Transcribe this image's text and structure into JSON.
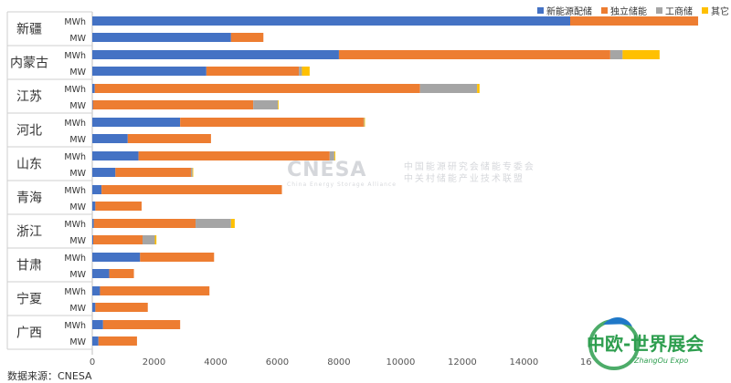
{
  "chart_data": {
    "type": "bar",
    "orientation": "horizontal",
    "stacked": true,
    "groups": [
      "新疆",
      "内蒙古",
      "江苏",
      "河北",
      "山东",
      "青海",
      "浙江",
      "甘肃",
      "宁夏",
      "广西"
    ],
    "units": [
      "MWh",
      "MW"
    ],
    "series": [
      {
        "name": "新能源配储",
        "color": "#4472C4",
        "values": [
          [
            15500,
            4500
          ],
          [
            8000,
            3700
          ],
          [
            80,
            20
          ],
          [
            2850,
            1150
          ],
          [
            1500,
            750
          ],
          [
            300,
            100
          ],
          [
            50,
            30
          ],
          [
            1550,
            550
          ],
          [
            250,
            100
          ],
          [
            350,
            200
          ]
        ]
      },
      {
        "name": "独立储能",
        "color": "#ED7D31",
        "values": [
          [
            4150,
            1050
          ],
          [
            8800,
            3000
          ],
          [
            10550,
            5200
          ],
          [
            5950,
            2700
          ],
          [
            6200,
            2450
          ],
          [
            5850,
            1500
          ],
          [
            3300,
            1600
          ],
          [
            2400,
            800
          ],
          [
            3550,
            1700
          ],
          [
            2500,
            1250
          ]
        ]
      },
      {
        "name": "工商储",
        "color": "#A5A5A5",
        "values": [
          [
            0,
            0
          ],
          [
            400,
            100
          ],
          [
            1850,
            800
          ],
          [
            20,
            0
          ],
          [
            150,
            50
          ],
          [
            0,
            0
          ],
          [
            1150,
            400
          ],
          [
            0,
            0
          ],
          [
            0,
            0
          ],
          [
            0,
            0
          ]
        ]
      },
      {
        "name": "其它",
        "color": "#FFC000",
        "values": [
          [
            0,
            0
          ],
          [
            1200,
            250
          ],
          [
            80,
            20
          ],
          [
            20,
            0
          ],
          [
            30,
            20
          ],
          [
            0,
            0
          ],
          [
            120,
            50
          ],
          [
            0,
            0
          ],
          [
            0,
            0
          ],
          [
            0,
            0
          ]
        ]
      }
    ],
    "xticks": [
      0,
      2000,
      4000,
      6000,
      8000,
      10000,
      12000,
      14000,
      "16"
    ],
    "xlim": [
      0,
      16000
    ],
    "legend_position": "top-right",
    "grid": false
  },
  "source_note": "数据来源：CNESA",
  "watermark": {
    "main": "CNESA",
    "sub": "China Energy Storage Alliance",
    "cn_line1": "中国能源研究会储能专委会",
    "cn_line2": "中关村储能产业技术联盟"
  },
  "logo": {
    "main": "中欧-世界展会",
    "sub": "ZhangOu Expo",
    "colors": {
      "primary": "#2E9E4F",
      "secondary": "#1F78C8"
    }
  }
}
